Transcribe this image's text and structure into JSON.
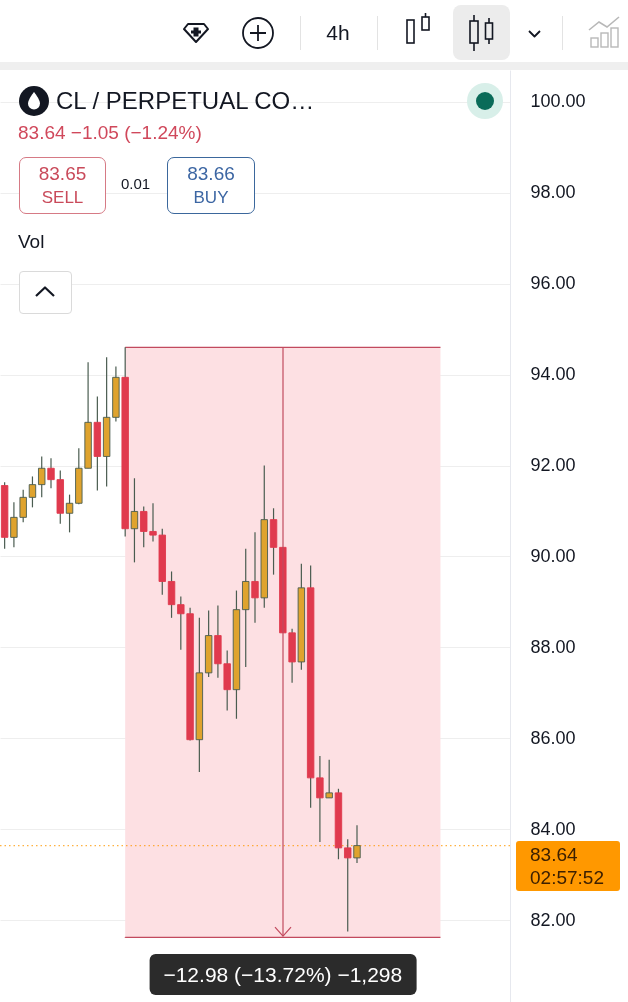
{
  "chart_data": {
    "type": "candlestick",
    "title": "CL / PERPETUAL CO…",
    "subtitle": "83.64 −1.05 (−1.24%)",
    "categories": [
      null,
      null,
      null,
      null,
      null,
      null,
      null,
      null,
      null,
      null,
      null,
      null,
      null,
      null,
      null,
      null,
      null,
      null,
      null,
      null,
      null,
      null,
      null,
      null,
      null,
      null,
      null,
      null,
      null,
      null,
      null,
      null,
      null,
      null,
      null,
      null,
      null,
      null,
      null,
      null,
      null,
      null,
      null,
      null,
      null,
      null,
      null,
      null,
      null,
      null,
      null,
      null,
      null,
      null,
      null
    ],
    "ohlc": [
      [
        91.56,
        91.63,
        90.17,
        90.42
      ],
      [
        90.42,
        91.19,
        90.2,
        90.86
      ],
      [
        90.86,
        91.47,
        90.75,
        91.3
      ],
      [
        91.3,
        91.76,
        91.08,
        91.58
      ],
      [
        91.58,
        92.2,
        91.3,
        91.94
      ],
      [
        91.94,
        92.16,
        91.5,
        91.69
      ],
      [
        91.69,
        91.89,
        90.72,
        90.95
      ],
      [
        90.95,
        91.36,
        90.53,
        91.17
      ],
      [
        91.17,
        92.38,
        91.15,
        91.94
      ],
      [
        91.94,
        94.27,
        91.94,
        92.95
      ],
      [
        92.95,
        93.52,
        91.45,
        92.2
      ],
      [
        92.2,
        94.38,
        91.54,
        93.06
      ],
      [
        93.06,
        94.18,
        92.97,
        93.94
      ],
      [
        93.94,
        94.6,
        90.44,
        90.61
      ],
      [
        90.61,
        91.72,
        89.87,
        90.99
      ],
      [
        90.99,
        91.1,
        90.2,
        90.55
      ],
      [
        90.55,
        91.17,
        90.33,
        90.47
      ],
      [
        90.47,
        90.61,
        89.16,
        89.45
      ],
      [
        89.45,
        89.67,
        88.65,
        88.94
      ],
      [
        88.94,
        89.12,
        87.95,
        88.74
      ],
      [
        88.74,
        88.87,
        85.95,
        85.97
      ],
      [
        85.97,
        88.65,
        85.26,
        87.44
      ],
      [
        87.44,
        88.81,
        87.35,
        88.26
      ],
      [
        88.26,
        88.92,
        87.33,
        87.64
      ],
      [
        87.64,
        87.93,
        86.61,
        87.07
      ],
      [
        87.07,
        89.25,
        86.43,
        88.83
      ],
      [
        88.83,
        90.17,
        87.57,
        89.45
      ],
      [
        89.45,
        90.53,
        88.54,
        89.09
      ],
      [
        89.09,
        92.0,
        88.87,
        90.81
      ],
      [
        90.81,
        91.06,
        89.6,
        90.2
      ],
      [
        90.2,
        90.2,
        88.32,
        88.32
      ],
      [
        88.32,
        88.41,
        87.22,
        87.68
      ],
      [
        87.68,
        89.84,
        87.51,
        89.31
      ],
      [
        89.31,
        89.8,
        84.47,
        85.13
      ],
      [
        85.13,
        85.61,
        83.72,
        84.69
      ],
      [
        84.69,
        85.53,
        84.69,
        84.8
      ],
      [
        84.8,
        84.89,
        83.34,
        83.59
      ],
      [
        83.59,
        83.78,
        81.75,
        83.37
      ],
      [
        83.37,
        84.09,
        83.26,
        83.64
      ],
      null,
      null,
      null,
      null,
      null,
      null,
      null,
      null,
      null,
      null,
      null,
      null,
      null,
      null,
      null,
      null
    ],
    "colors": [
      "#e03a4e",
      "#dfa32e",
      "#dfa32e",
      "#dfa32e",
      "#dfa32e",
      "#e03a4e",
      "#e03a4e",
      "#dfa32e",
      "#dfa32e",
      "#dfa32e",
      "#e03a4e",
      "#dfa32e",
      "#dfa32e",
      "#e03a4e",
      "#dfa32e",
      "#e03a4e",
      "#e03a4e",
      "#e03a4e",
      "#e03a4e",
      "#e03a4e",
      "#e03a4e",
      "#dfa32e",
      "#dfa32e",
      "#e03a4e",
      "#e03a4e",
      "#dfa32e",
      "#dfa32e",
      "#e03a4e",
      "#dfa32e",
      "#e03a4e",
      "#e03a4e",
      "#e03a4e",
      "#dfa32e",
      "#e03a4e",
      "#e03a4e",
      "#dfa32e",
      "#e03a4e",
      "#e03a4e",
      "#dfa32e",
      null,
      null,
      null,
      null,
      null,
      null,
      null,
      null,
      null,
      null,
      null,
      null,
      null,
      null,
      null,
      null
    ],
    "ylim": [
      80.2,
      100.7
    ],
    "yticks": [
      {
        "value": 82,
        "label": "82.00"
      },
      {
        "value": 84,
        "label": "84.00"
      },
      {
        "value": 86,
        "label": "86.00"
      },
      {
        "value": 88,
        "label": "88.00"
      },
      {
        "value": 90,
        "label": "90.00"
      },
      {
        "value": 92,
        "label": "92.00"
      },
      {
        "value": 94,
        "label": "94.00"
      },
      {
        "value": 96,
        "label": "96.00"
      },
      {
        "value": 98,
        "label": "98.00"
      },
      {
        "value": 100,
        "label": "100.00"
      }
    ],
    "grid": "y",
    "tick_labels": "y",
    "ref_lines": [
      {
        "axis": "y",
        "value": 83.64,
        "label": "83.64 02:57:52",
        "color": "#ff9800",
        "line_style": "dotted"
      }
    ],
    "bands": [
      {
        "axis": "y",
        "from": 81.62,
        "to": 94.6,
        "label": "−12.98 (−13.72%) −1,298",
        "color": "#fde0e3"
      }
    ],
    "annotations": [
      "4h",
      "83.65",
      "SELL",
      "0.01",
      "83.66",
      "BUY",
      "Vol"
    ]
  }
}
